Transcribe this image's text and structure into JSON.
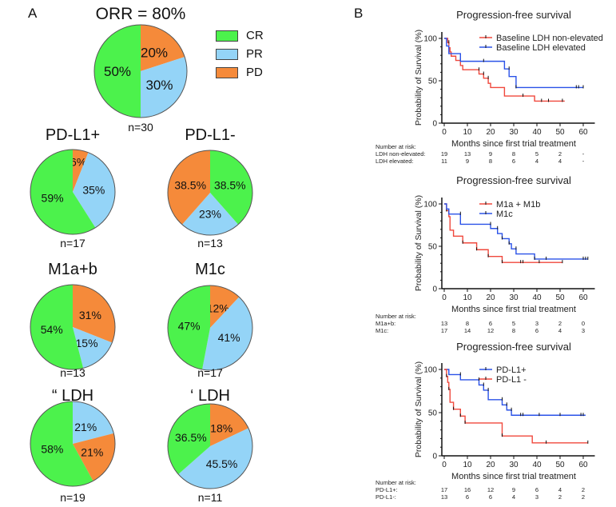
{
  "panels": {
    "a_label": "A",
    "b_label": "B"
  },
  "colors": {
    "CR": "#4cf24c",
    "PR": "#94d4f7",
    "PD": "#f58a3a",
    "red_line": "#f0483c",
    "blue_line": "#2a52e8"
  },
  "legend": [
    {
      "label": "CR",
      "color": "#4cf24c"
    },
    {
      "label": "PR",
      "color": "#94d4f7"
    },
    {
      "label": "PD",
      "color": "#f58a3a"
    }
  ],
  "chart_data": [
    {
      "type": "pie",
      "title": "ORR = 80%",
      "n_label": "n=30",
      "slices": [
        {
          "category": "PD",
          "value": 20,
          "label": "20%"
        },
        {
          "category": "PR",
          "value": 30,
          "label": "30%"
        },
        {
          "category": "CR",
          "value": 50,
          "label": "50%"
        }
      ]
    },
    {
      "type": "pie",
      "title": "PD-L1+",
      "n_label": "n=17",
      "slices": [
        {
          "category": "PD",
          "value": 6,
          "label": "6%"
        },
        {
          "category": "PR",
          "value": 35,
          "label": "35%"
        },
        {
          "category": "CR",
          "value": 59,
          "label": "59%"
        }
      ]
    },
    {
      "type": "pie",
      "title": "PD-L1-",
      "n_label": "n=13",
      "slices": [
        {
          "category": "CR",
          "value": 38.5,
          "label": "38.5%"
        },
        {
          "category": "PR",
          "value": 23,
          "label": "23%"
        },
        {
          "category": "PD",
          "value": 38.5,
          "label": "38.5%"
        }
      ]
    },
    {
      "type": "pie",
      "title": "M1a+b",
      "n_label": "n=13",
      "slices": [
        {
          "category": "PD",
          "value": 31,
          "label": "31%"
        },
        {
          "category": "PR",
          "value": 15,
          "label": "15%"
        },
        {
          "category": "CR",
          "value": 54,
          "label": "54%"
        }
      ]
    },
    {
      "type": "pie",
      "title": "M1c",
      "n_label": "n=17",
      "slices": [
        {
          "category": "PD",
          "value": 12,
          "label": "12%"
        },
        {
          "category": "PR",
          "value": 41,
          "label": "41%"
        },
        {
          "category": "CR",
          "value": 47,
          "label": "47%"
        }
      ]
    },
    {
      "type": "pie",
      "title": "“ LDH",
      "n_label": "n=19",
      "slices": [
        {
          "category": "PR",
          "value": 21,
          "label": "21%"
        },
        {
          "category": "PD",
          "value": 21,
          "label": "21%"
        },
        {
          "category": "CR",
          "value": 58,
          "label": "58%"
        }
      ]
    },
    {
      "type": "pie",
      "title": "‘ LDH",
      "n_label": "n=11",
      "slices": [
        {
          "category": "PD",
          "value": 18,
          "label": "18%"
        },
        {
          "category": "PR",
          "value": 45.5,
          "label": "45.5%"
        },
        {
          "category": "CR",
          "value": 36.5,
          "label": "36.5%"
        }
      ]
    },
    {
      "type": "line",
      "subtype": "kaplan-meier",
      "title": "Progression-free survival",
      "xlabel": "Months since first trial treatment",
      "ylabel": "Probability of Survival (%)",
      "xlim": [
        0,
        65
      ],
      "ylim": [
        0,
        100
      ],
      "xticks": [
        0,
        10,
        20,
        30,
        40,
        50,
        60
      ],
      "yticks": [
        0,
        50,
        100
      ],
      "legend": "top-right",
      "series": [
        {
          "name": "Baseline LDH non-elevated",
          "color": "red",
          "steps": [
            [
              0,
              100
            ],
            [
              1.5,
              95
            ],
            [
              2,
              89
            ],
            [
              2.5,
              84
            ],
            [
              3,
              79
            ],
            [
              5,
              74
            ],
            [
              7,
              68
            ],
            [
              8,
              63
            ],
            [
              15,
              58
            ],
            [
              17,
              53
            ],
            [
              19,
              47
            ],
            [
              20,
              42
            ],
            [
              26,
              32
            ],
            [
              39,
              26
            ],
            [
              52,
              26
            ]
          ],
          "censored": [
            [
              2,
              95
            ],
            [
              7,
              74
            ],
            [
              15,
              63
            ],
            [
              17,
              58
            ],
            [
              19,
              53
            ],
            [
              34,
              32
            ],
            [
              42,
              26
            ],
            [
              45,
              26
            ],
            [
              51,
              26
            ]
          ]
        },
        {
          "name": "Baseline LDH elevated",
          "color": "blue",
          "steps": [
            [
              0,
              100
            ],
            [
              1,
              91
            ],
            [
              2,
              82
            ],
            [
              7,
              73
            ],
            [
              26,
              64
            ],
            [
              28,
              55
            ],
            [
              31,
              42
            ],
            [
              60,
              42
            ]
          ],
          "censored": [
            [
              17,
              73
            ],
            [
              28,
              64
            ],
            [
              31,
              42
            ],
            [
              57,
              42
            ],
            [
              58,
              42
            ],
            [
              60,
              42
            ]
          ]
        }
      ],
      "risk_table": {
        "header": "Number at risk:",
        "rows": [
          {
            "label": "LDH non-elevated:",
            "values": [
              "19",
              "13",
              "9",
              "8",
              "5",
              "2",
              "-"
            ]
          },
          {
            "label": "LDH elevated:",
            "values": [
              "11",
              "9",
              "8",
              "6",
              "4",
              "4",
              "-"
            ]
          }
        ]
      }
    },
    {
      "type": "line",
      "subtype": "kaplan-meier",
      "title": "Progression-free survival",
      "xlabel": "Months since first trial treatment",
      "ylabel": "Probability of Survival (%)",
      "xlim": [
        0,
        65
      ],
      "ylim": [
        0,
        100
      ],
      "xticks": [
        0,
        10,
        20,
        30,
        40,
        50,
        60
      ],
      "yticks": [
        0,
        50,
        100
      ],
      "legend": "top-right",
      "series": [
        {
          "name": "M1a + M1b",
          "color": "red",
          "steps": [
            [
              0,
              100
            ],
            [
              1,
              92
            ],
            [
              2,
              85
            ],
            [
              2.5,
              69
            ],
            [
              4,
              62
            ],
            [
              8,
              54
            ],
            [
              14,
              46
            ],
            [
              19,
              38
            ],
            [
              25,
              31
            ],
            [
              51,
              31
            ]
          ],
          "censored": [
            [
              1,
              92
            ],
            [
              8,
              54
            ],
            [
              14,
              46
            ],
            [
              19,
              38
            ],
            [
              25,
              31
            ],
            [
              33,
              31
            ],
            [
              34,
              31
            ],
            [
              41,
              31
            ],
            [
              51,
              31
            ]
          ]
        },
        {
          "name": "M1c",
          "color": "blue",
          "steps": [
            [
              0,
              100
            ],
            [
              1,
              94
            ],
            [
              2,
              88
            ],
            [
              7,
              76
            ],
            [
              20,
              71
            ],
            [
              23,
              65
            ],
            [
              25,
              59
            ],
            [
              28,
              53
            ],
            [
              29,
              47
            ],
            [
              31,
              41
            ],
            [
              39,
              35
            ],
            [
              62,
              35
            ]
          ],
          "censored": [
            [
              7,
              88
            ],
            [
              20,
              76
            ],
            [
              23,
              71
            ],
            [
              25,
              59
            ],
            [
              28,
              53
            ],
            [
              31,
              47
            ],
            [
              39,
              35
            ],
            [
              44,
              35
            ],
            [
              60,
              35
            ],
            [
              61,
              35
            ],
            [
              62,
              35
            ]
          ]
        }
      ],
      "risk_table": {
        "header": "Number at risk:",
        "rows": [
          {
            "label": "M1a+b:",
            "values": [
              "13",
              "8",
              "6",
              "5",
              "3",
              "2",
              "0"
            ]
          },
          {
            "label": "M1c:",
            "values": [
              "17",
              "14",
              "12",
              "8",
              "6",
              "4",
              "3"
            ]
          }
        ]
      }
    },
    {
      "type": "line",
      "subtype": "kaplan-meier",
      "title": "Progression-free survival",
      "xlabel": "Months since first trial treatment",
      "ylabel": "Probability of Survival (%)",
      "xlim": [
        0,
        65
      ],
      "ylim": [
        0,
        100
      ],
      "xticks": [
        0,
        10,
        20,
        30,
        40,
        50,
        60
      ],
      "yticks": [
        0,
        50,
        100
      ],
      "legend": "top-right",
      "series": [
        {
          "name": "PD-L1+",
          "color": "blue",
          "steps": [
            [
              0,
              100
            ],
            [
              2,
              94
            ],
            [
              7,
              88
            ],
            [
              15,
              82
            ],
            [
              17,
              76
            ],
            [
              19,
              65
            ],
            [
              25,
              59
            ],
            [
              27,
              53
            ],
            [
              29,
              47
            ],
            [
              61,
              47
            ]
          ],
          "censored": [
            [
              7,
              94
            ],
            [
              15,
              88
            ],
            [
              17,
              82
            ],
            [
              19,
              76
            ],
            [
              25,
              65
            ],
            [
              27,
              59
            ],
            [
              29,
              53
            ],
            [
              33,
              47
            ],
            [
              34,
              47
            ],
            [
              41,
              47
            ],
            [
              50,
              47
            ],
            [
              59,
              47
            ],
            [
              60,
              47
            ]
          ]
        },
        {
          "name": "PD-L1 -",
          "color": "red",
          "steps": [
            [
              0,
              100
            ],
            [
              1,
              92
            ],
            [
              1.5,
              85
            ],
            [
              2,
              77
            ],
            [
              2.5,
              62
            ],
            [
              4,
              54
            ],
            [
              7,
              46
            ],
            [
              9,
              38
            ],
            [
              25,
              23
            ],
            [
              38,
              15
            ],
            [
              62,
              15
            ]
          ],
          "censored": [
            [
              1,
              92
            ],
            [
              2,
              77
            ],
            [
              4,
              54
            ],
            [
              7,
              46
            ],
            [
              9,
              38
            ],
            [
              25,
              23
            ],
            [
              44,
              15
            ],
            [
              62,
              15
            ]
          ]
        }
      ],
      "risk_table": {
        "header": "Number at risk:",
        "rows": [
          {
            "label": "PD-L1+:",
            "values": [
              "17",
              "16",
              "12",
              "9",
              "6",
              "4",
              "2"
            ]
          },
          {
            "label": "PD-L1-:",
            "values": [
              "13",
              "6",
              "6",
              "4",
              "3",
              "2",
              "2"
            ]
          }
        ]
      }
    }
  ]
}
